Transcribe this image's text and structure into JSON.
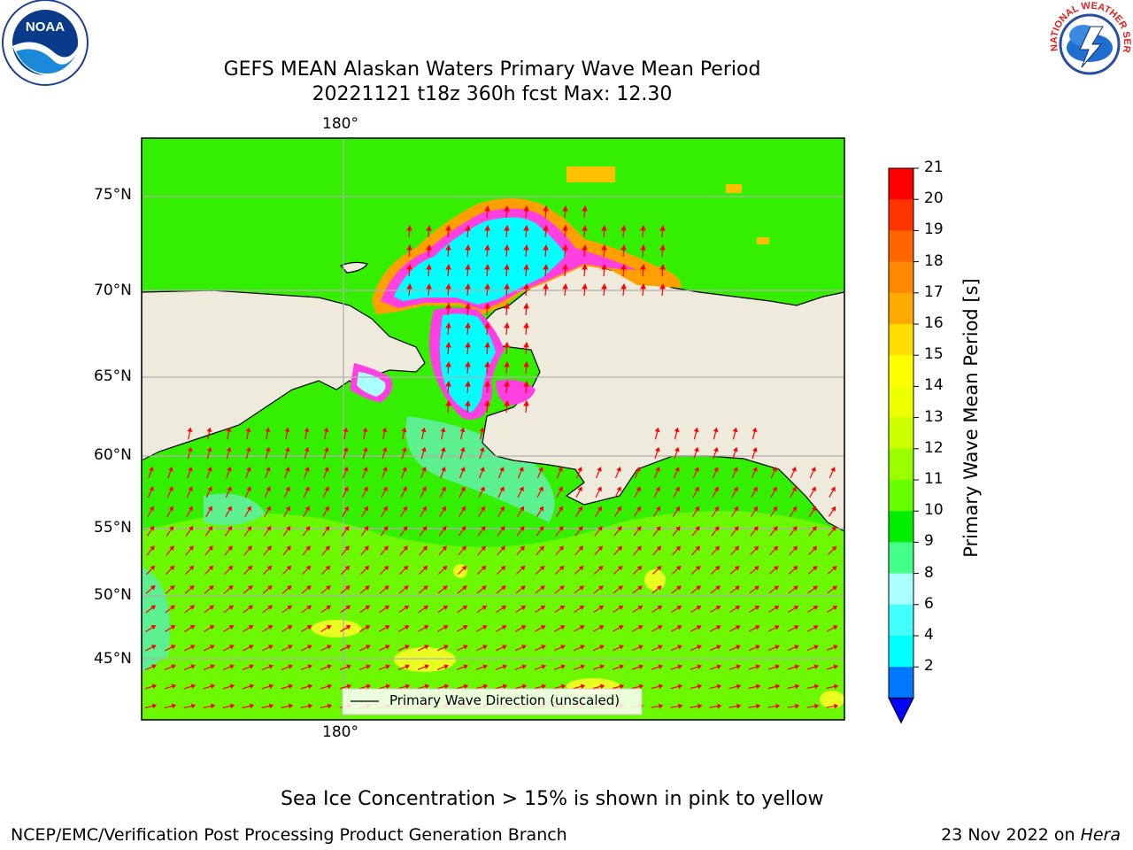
{
  "title": {
    "line1": "GEFS MEAN Alaskan Waters Primary Wave Mean Period",
    "line2": "20221121 t18z 360h fcst   Max: 12.30"
  },
  "logos": {
    "left": "NOAA",
    "right": "NATIONAL WEATHER SERVICE"
  },
  "map": {
    "longitude_label_top": "180°",
    "longitude_label_bottom": "180°",
    "latitude_labels": [
      "75°N",
      "70°N",
      "65°N",
      "60°N",
      "55°N",
      "50°N",
      "45°N"
    ],
    "legend_label": "Primary Wave Direction (unscaled)",
    "colors": {
      "land": "#efebdc",
      "ocean_bg": "#34f000",
      "ocean_alt": "#6cf800",
      "arrow": "#ff0000",
      "ice_cyan": "#00ffff",
      "ice_pink": "#ff40e0",
      "ice_orange": "#ffa000"
    }
  },
  "colorbar": {
    "label": "Primary Wave Mean Period [s]",
    "ticks": [
      "21",
      "20",
      "19",
      "18",
      "17",
      "16",
      "15",
      "14",
      "13",
      "12",
      "11",
      "10",
      "9",
      "8",
      "6",
      "4",
      "2"
    ],
    "colors": [
      "#ff0000",
      "#ff3300",
      "#ff6600",
      "#ff8800",
      "#ffaa00",
      "#ffdd00",
      "#ffff00",
      "#eeff00",
      "#ccff00",
      "#99ff00",
      "#66ff00",
      "#00ee00",
      "#44ff88",
      "#aaffff",
      "#44ffff",
      "#00ffff",
      "#0077ff"
    ],
    "extend_color": "#0000ff"
  },
  "footer": {
    "sea_ice_note": "Sea Ice Concentration > 15% is shown in pink to yellow",
    "branch": "NCEP/EMC/Verification Post Processing Product Generation Branch",
    "date": "23 Nov 2022 on",
    "host": "Hera"
  }
}
